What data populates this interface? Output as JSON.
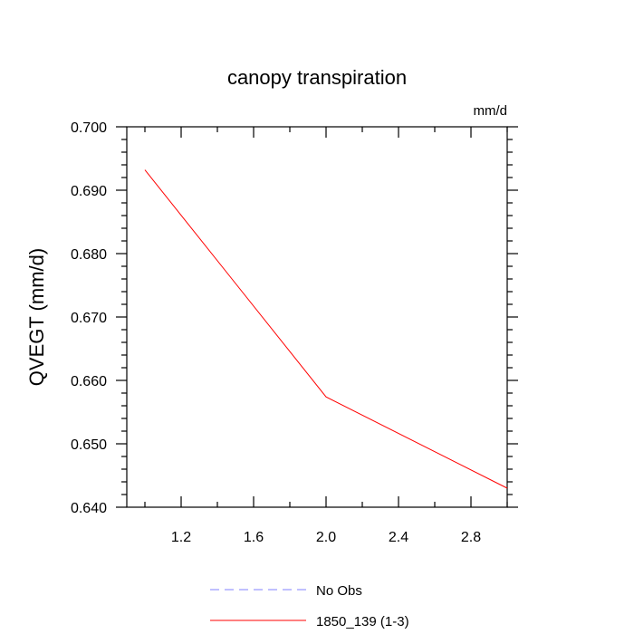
{
  "chart_data": {
    "type": "line",
    "title": "canopy transpiration",
    "units_label": "mm/d",
    "ylabel": "QVEGT  (mm/d)",
    "xlabel": "",
    "xlim": [
      0.9,
      3.0
    ],
    "ylim": [
      0.64,
      0.7
    ],
    "x_ticks": [
      1.2,
      1.6,
      2.0,
      2.4,
      2.8
    ],
    "x_tick_labels": [
      "1.2",
      "1.6",
      "2.0",
      "2.4",
      "2.8"
    ],
    "x_minor_ticks": [
      1.0,
      1.4,
      1.8,
      2.2,
      2.6,
      3.0
    ],
    "y_ticks": [
      0.64,
      0.65,
      0.66,
      0.67,
      0.68,
      0.69,
      0.7
    ],
    "y_tick_labels": [
      "0.640",
      "0.650",
      "0.660",
      "0.670",
      "0.680",
      "0.690",
      "0.700"
    ],
    "y_minor_step": 0.002,
    "grid": false,
    "legend_position": "bottom-center",
    "series": [
      {
        "name": "No Obs",
        "color": "#8080ff",
        "dash": "dashed",
        "x": [],
        "y": []
      },
      {
        "name": "1850_139 (1-3)",
        "color": "#ff0000",
        "dash": "solid",
        "x": [
          1.0,
          2.0,
          3.0
        ],
        "y": [
          0.6932,
          0.6574,
          0.643
        ]
      }
    ]
  }
}
